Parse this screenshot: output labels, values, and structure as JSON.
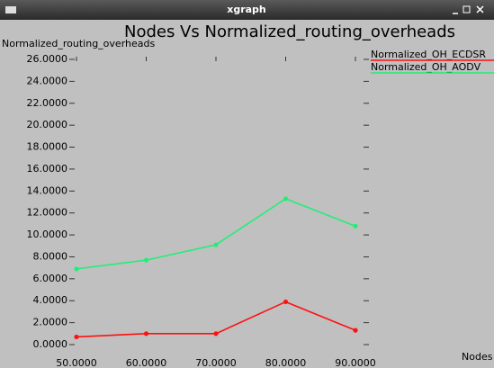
{
  "window_title": "xgraph",
  "chart_data": {
    "type": "line",
    "title": "Nodes Vs Normalized_routing_overheads",
    "y_label": "Normalized_routing_overheads",
    "x_label": "Nodes",
    "x": [
      50,
      60,
      70,
      80,
      90
    ],
    "series": [
      {
        "name": "Normalized_OH_ECDSR",
        "color": "#ff1010",
        "values": [
          0.7,
          1.0,
          1.0,
          3.9,
          1.3
        ]
      },
      {
        "name": "Normalized_OH_AODV",
        "color": "#22ee77",
        "values": [
          6.9,
          7.7,
          9.1,
          13.3,
          10.8
        ]
      }
    ],
    "xlim": [
      50,
      90
    ],
    "xticks": [
      {
        "value": 50,
        "label": "50.0000"
      },
      {
        "value": 60,
        "label": "60.0000"
      },
      {
        "value": 70,
        "label": "70.0000"
      },
      {
        "value": 80,
        "label": "80.0000"
      },
      {
        "value": 90,
        "label": "90.0000"
      }
    ],
    "ylim": [
      0,
      26
    ],
    "yticks": [
      {
        "value": 0,
        "label": "0.0000"
      },
      {
        "value": 2,
        "label": "2.0000"
      },
      {
        "value": 4,
        "label": "4.0000"
      },
      {
        "value": 6,
        "label": "6.0000"
      },
      {
        "value": 8,
        "label": "8.0000"
      },
      {
        "value": 10,
        "label": "10.0000"
      },
      {
        "value": 12,
        "label": "12.0000"
      },
      {
        "value": 14,
        "label": "14.0000"
      },
      {
        "value": 16,
        "label": "16.0000"
      },
      {
        "value": 18,
        "label": "18.0000"
      },
      {
        "value": 20,
        "label": "20.0000"
      },
      {
        "value": 22,
        "label": "22.0000"
      },
      {
        "value": 24,
        "label": "24.0000"
      },
      {
        "value": 26,
        "label": "26.0000"
      }
    ],
    "legend": "upper right"
  }
}
